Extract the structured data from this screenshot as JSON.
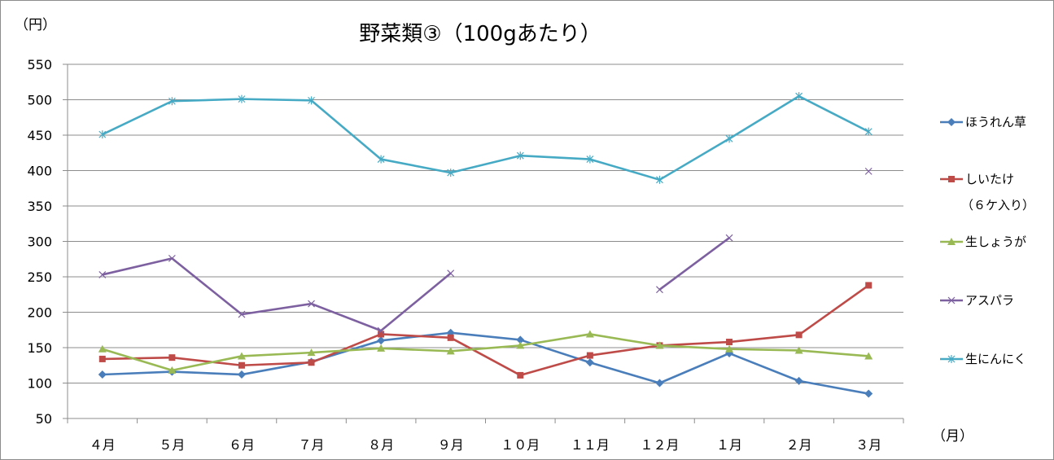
{
  "chart_data": {
    "type": "line",
    "title": "野菜類③（100gあたり）",
    "ylabel": "（円）",
    "xlabel": "（月）",
    "ylim": [
      50,
      550
    ],
    "yticks": [
      50,
      100,
      150,
      200,
      250,
      300,
      350,
      400,
      450,
      500,
      550
    ],
    "grid": true,
    "legend_position": "right",
    "categories": [
      "４月",
      "５月",
      "６月",
      "７月",
      "８月",
      "９月",
      "１０月",
      "１１月",
      "１２月",
      "１月",
      "２月",
      "３月"
    ],
    "series": [
      {
        "name": "ほうれん草",
        "color": "#4a7ebb",
        "marker": "diamond",
        "values": [
          112,
          116,
          112,
          130,
          160,
          171,
          161,
          129,
          100,
          142,
          103,
          85
        ]
      },
      {
        "name": "しいたけ",
        "name_line2": "（６ケ入り）",
        "color": "#be4b48",
        "marker": "square",
        "values": [
          134,
          136,
          125,
          129,
          169,
          164,
          111,
          139,
          153,
          158,
          168,
          238
        ]
      },
      {
        "name": "生しょうが",
        "color": "#98b954",
        "marker": "triangle",
        "values": [
          148,
          118,
          138,
          143,
          149,
          145,
          153,
          169,
          153,
          148,
          146,
          138
        ]
      },
      {
        "name": "アスパラ",
        "color": "#7d60a0",
        "marker": "x",
        "values": [
          253,
          276,
          197,
          212,
          174,
          255,
          null,
          null,
          232,
          305,
          null,
          399
        ]
      },
      {
        "name": "生にんにく",
        "color": "#46aac5",
        "marker": "star",
        "values": [
          451,
          498,
          501,
          499,
          416,
          397,
          421,
          416,
          387,
          445,
          505,
          455
        ]
      }
    ]
  }
}
